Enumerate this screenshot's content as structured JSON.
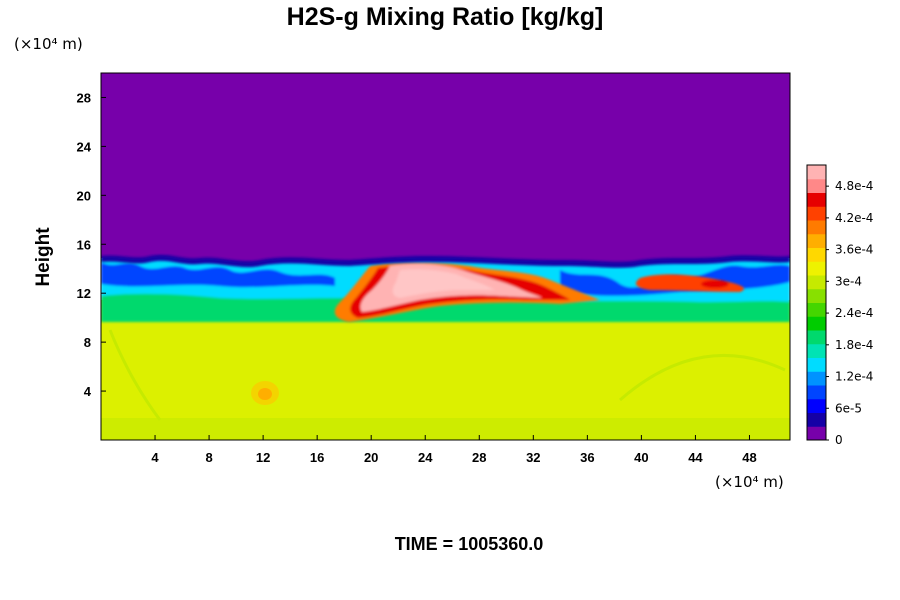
{
  "chart_data": {
    "type": "heatmap",
    "title": "H2S-g Mixing Ratio [kg/kg]",
    "ylabel": "Height",
    "y_unit": "(×10⁴ m)",
    "x_unit": "(×10⁴ m)",
    "x_ticks": [
      "4",
      "8",
      "12",
      "16",
      "20",
      "24",
      "28",
      "32",
      "36",
      "40",
      "44",
      "48"
    ],
    "x_tick_values": [
      4,
      8,
      12,
      16,
      20,
      24,
      28,
      32,
      36,
      40,
      44,
      48
    ],
    "y_ticks": [
      "4",
      "8",
      "12",
      "16",
      "20",
      "24",
      "28"
    ],
    "y_tick_values": [
      4,
      8,
      12,
      16,
      20,
      24,
      28
    ],
    "xlim": [
      0,
      51
    ],
    "ylim": [
      0,
      30
    ],
    "colorbar": {
      "range": [
        0,
        0.00052
      ],
      "tick_labels": [
        "4.8e-4",
        "4.2e-4",
        "3.6e-4",
        "3e-4",
        "2.4e-4",
        "1.8e-4",
        "1.2e-4",
        "6e-5",
        "0"
      ],
      "tick_values": [
        0.00048,
        0.00042,
        0.00036,
        0.0003,
        0.00024,
        0.00018,
        0.00012,
        6e-05,
        0
      ],
      "colors": [
        "#7700aa",
        "#1500a6",
        "#0000ff",
        "#0045ff",
        "#0093ff",
        "#00dcff",
        "#00e3b4",
        "#00d96d",
        "#00cc00",
        "#44d600",
        "#88e000",
        "#c6ea00",
        "#eef200",
        "#ffd800",
        "#ffae00",
        "#ff7b00",
        "#ff4100",
        "#e60000",
        "#ff8888",
        "#ffb3b3"
      ]
    },
    "field": {
      "background_value": 0.00033,
      "top_value": 0,
      "interface_height_approx": 10
    },
    "time_label": "TIME = 1005360.0"
  }
}
